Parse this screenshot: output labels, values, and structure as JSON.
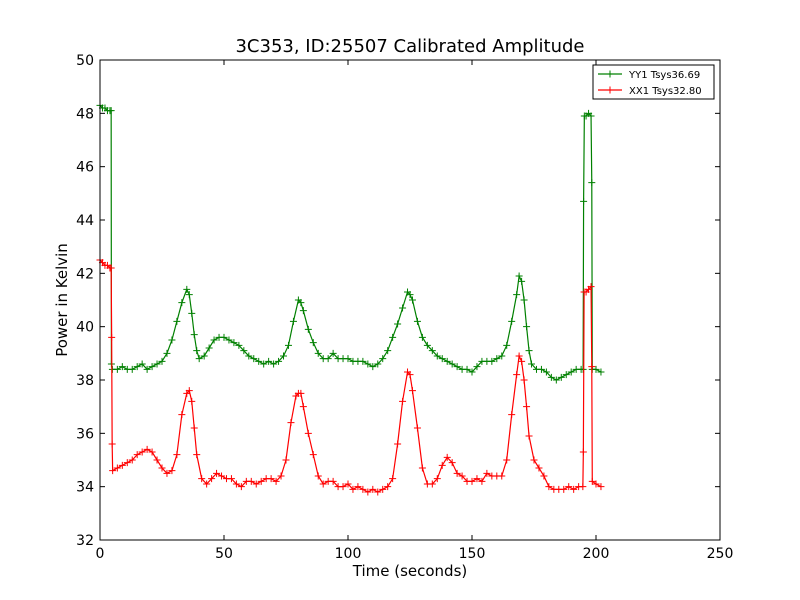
{
  "chart_data": {
    "type": "line",
    "title": "3C353, ID:25507 Calibrated Amplitude",
    "xlabel": "Time (seconds)",
    "ylabel": "Power in Kelvin",
    "xlim": [
      0,
      250
    ],
    "ylim": [
      32,
      50
    ],
    "x_ticks": [
      "0",
      "50",
      "100",
      "150",
      "200",
      "250"
    ],
    "y_ticks": [
      "32",
      "34",
      "36",
      "38",
      "40",
      "42",
      "44",
      "46",
      "48",
      "50"
    ],
    "grid": false,
    "legend_position": "top-right",
    "marker": "+",
    "series": [
      {
        "name": "YY1 Tsys36.69",
        "color": "#008000",
        "points": [
          [
            0,
            48.3
          ],
          [
            1,
            48.2
          ],
          [
            2,
            48.2
          ],
          [
            3,
            48.1
          ],
          [
            4,
            48.1
          ],
          [
            4.5,
            48.1
          ],
          [
            4.6,
            38.6
          ],
          [
            5,
            38.4
          ],
          [
            7,
            38.4
          ],
          [
            9,
            38.5
          ],
          [
            11,
            38.4
          ],
          [
            13,
            38.4
          ],
          [
            15,
            38.5
          ],
          [
            17,
            38.6
          ],
          [
            19,
            38.4
          ],
          [
            21,
            38.5
          ],
          [
            23,
            38.6
          ],
          [
            25,
            38.7
          ],
          [
            27,
            39.0
          ],
          [
            29,
            39.5
          ],
          [
            31,
            40.2
          ],
          [
            33,
            40.9
          ],
          [
            35,
            41.4
          ],
          [
            36,
            41.2
          ],
          [
            37,
            40.5
          ],
          [
            38,
            39.7
          ],
          [
            39,
            39.1
          ],
          [
            40,
            38.8
          ],
          [
            42,
            38.9
          ],
          [
            44,
            39.2
          ],
          [
            46,
            39.5
          ],
          [
            48,
            39.6
          ],
          [
            50,
            39.6
          ],
          [
            52,
            39.5
          ],
          [
            54,
            39.4
          ],
          [
            56,
            39.3
          ],
          [
            58,
            39.1
          ],
          [
            60,
            38.9
          ],
          [
            62,
            38.8
          ],
          [
            64,
            38.7
          ],
          [
            66,
            38.6
          ],
          [
            68,
            38.7
          ],
          [
            70,
            38.6
          ],
          [
            72,
            38.7
          ],
          [
            74,
            38.9
          ],
          [
            76,
            39.3
          ],
          [
            78,
            40.2
          ],
          [
            80,
            41.0
          ],
          [
            81,
            40.9
          ],
          [
            82,
            40.6
          ],
          [
            84,
            39.9
          ],
          [
            86,
            39.4
          ],
          [
            88,
            39.0
          ],
          [
            90,
            38.8
          ],
          [
            92,
            38.8
          ],
          [
            94,
            39.0
          ],
          [
            96,
            38.8
          ],
          [
            98,
            38.8
          ],
          [
            100,
            38.8
          ],
          [
            102,
            38.7
          ],
          [
            104,
            38.7
          ],
          [
            106,
            38.7
          ],
          [
            108,
            38.6
          ],
          [
            110,
            38.5
          ],
          [
            112,
            38.6
          ],
          [
            114,
            38.8
          ],
          [
            116,
            39.1
          ],
          [
            118,
            39.6
          ],
          [
            120,
            40.1
          ],
          [
            122,
            40.7
          ],
          [
            124,
            41.3
          ],
          [
            125,
            41.2
          ],
          [
            126,
            41.0
          ],
          [
            128,
            40.2
          ],
          [
            130,
            39.6
          ],
          [
            132,
            39.3
          ],
          [
            134,
            39.1
          ],
          [
            136,
            38.9
          ],
          [
            138,
            38.8
          ],
          [
            140,
            38.7
          ],
          [
            142,
            38.6
          ],
          [
            144,
            38.5
          ],
          [
            146,
            38.4
          ],
          [
            148,
            38.4
          ],
          [
            150,
            38.3
          ],
          [
            152,
            38.5
          ],
          [
            154,
            38.7
          ],
          [
            156,
            38.7
          ],
          [
            158,
            38.7
          ],
          [
            160,
            38.8
          ],
          [
            162,
            38.9
          ],
          [
            164,
            39.3
          ],
          [
            166,
            40.2
          ],
          [
            168,
            41.2
          ],
          [
            169,
            41.9
          ],
          [
            170,
            41.7
          ],
          [
            171,
            41.0
          ],
          [
            172,
            40.0
          ],
          [
            173,
            39.1
          ],
          [
            174,
            38.6
          ],
          [
            176,
            38.4
          ],
          [
            178,
            38.4
          ],
          [
            180,
            38.3
          ],
          [
            182,
            38.1
          ],
          [
            184,
            38.0
          ],
          [
            186,
            38.1
          ],
          [
            188,
            38.2
          ],
          [
            190,
            38.3
          ],
          [
            192,
            38.4
          ],
          [
            194,
            38.4
          ],
          [
            194.8,
            38.4
          ],
          [
            195,
            44.7
          ],
          [
            195.3,
            47.9
          ],
          [
            196,
            47.9
          ],
          [
            197,
            48.0
          ],
          [
            198,
            47.9
          ],
          [
            198.3,
            45.4
          ],
          [
            198.5,
            38.4
          ],
          [
            200,
            38.4
          ],
          [
            202,
            38.3
          ]
        ]
      },
      {
        "name": "XX1 Tsys32.80",
        "color": "#ff0000",
        "points": [
          [
            0,
            42.5
          ],
          [
            1,
            42.4
          ],
          [
            2,
            42.3
          ],
          [
            3,
            42.3
          ],
          [
            4,
            42.2
          ],
          [
            4.5,
            42.2
          ],
          [
            4.7,
            39.6
          ],
          [
            4.9,
            35.6
          ],
          [
            5.1,
            34.6
          ],
          [
            7,
            34.7
          ],
          [
            9,
            34.8
          ],
          [
            11,
            34.9
          ],
          [
            13,
            35.0
          ],
          [
            15,
            35.2
          ],
          [
            17,
            35.3
          ],
          [
            19,
            35.4
          ],
          [
            21,
            35.3
          ],
          [
            23,
            35.0
          ],
          [
            25,
            34.7
          ],
          [
            27,
            34.5
          ],
          [
            29,
            34.6
          ],
          [
            31,
            35.2
          ],
          [
            33,
            36.7
          ],
          [
            35,
            37.5
          ],
          [
            36,
            37.6
          ],
          [
            37,
            37.2
          ],
          [
            38,
            36.2
          ],
          [
            39,
            35.2
          ],
          [
            41,
            34.3
          ],
          [
            43,
            34.1
          ],
          [
            45,
            34.3
          ],
          [
            47,
            34.5
          ],
          [
            49,
            34.4
          ],
          [
            51,
            34.3
          ],
          [
            53,
            34.3
          ],
          [
            55,
            34.1
          ],
          [
            57,
            34.0
          ],
          [
            59,
            34.2
          ],
          [
            61,
            34.2
          ],
          [
            63,
            34.1
          ],
          [
            65,
            34.2
          ],
          [
            67,
            34.3
          ],
          [
            69,
            34.3
          ],
          [
            71,
            34.2
          ],
          [
            73,
            34.4
          ],
          [
            75,
            35.0
          ],
          [
            77,
            36.4
          ],
          [
            79,
            37.4
          ],
          [
            80,
            37.5
          ],
          [
            81,
            37.5
          ],
          [
            82,
            37.0
          ],
          [
            84,
            36.0
          ],
          [
            86,
            35.2
          ],
          [
            88,
            34.4
          ],
          [
            90,
            34.1
          ],
          [
            92,
            34.2
          ],
          [
            94,
            34.2
          ],
          [
            96,
            34.0
          ],
          [
            98,
            34.0
          ],
          [
            100,
            34.1
          ],
          [
            102,
            33.9
          ],
          [
            104,
            34.0
          ],
          [
            106,
            33.9
          ],
          [
            108,
            33.8
          ],
          [
            110,
            33.9
          ],
          [
            112,
            33.8
          ],
          [
            114,
            33.9
          ],
          [
            116,
            34.0
          ],
          [
            118,
            34.3
          ],
          [
            120,
            35.6
          ],
          [
            122,
            37.2
          ],
          [
            124,
            38.3
          ],
          [
            125,
            38.2
          ],
          [
            126,
            37.6
          ],
          [
            128,
            36.2
          ],
          [
            130,
            34.7
          ],
          [
            132,
            34.1
          ],
          [
            134,
            34.1
          ],
          [
            136,
            34.3
          ],
          [
            138,
            34.8
          ],
          [
            140,
            35.1
          ],
          [
            142,
            34.9
          ],
          [
            144,
            34.5
          ],
          [
            146,
            34.4
          ],
          [
            148,
            34.2
          ],
          [
            150,
            34.2
          ],
          [
            152,
            34.3
          ],
          [
            154,
            34.2
          ],
          [
            156,
            34.5
          ],
          [
            158,
            34.4
          ],
          [
            160,
            34.4
          ],
          [
            162,
            34.4
          ],
          [
            164,
            35.0
          ],
          [
            166,
            36.7
          ],
          [
            168,
            38.2
          ],
          [
            169,
            38.9
          ],
          [
            170,
            38.7
          ],
          [
            171,
            38.0
          ],
          [
            172,
            37.0
          ],
          [
            173,
            35.9
          ],
          [
            175,
            35.0
          ],
          [
            177,
            34.7
          ],
          [
            179,
            34.4
          ],
          [
            181,
            34.0
          ],
          [
            183,
            33.9
          ],
          [
            185,
            33.9
          ],
          [
            187,
            33.9
          ],
          [
            189,
            34.0
          ],
          [
            191,
            33.9
          ],
          [
            193,
            34.0
          ],
          [
            194.7,
            34.0
          ],
          [
            194.9,
            35.3
          ],
          [
            195.2,
            41.3
          ],
          [
            196,
            41.3
          ],
          [
            197,
            41.4
          ],
          [
            198,
            41.5
          ],
          [
            198.3,
            38.5
          ],
          [
            198.5,
            34.2
          ],
          [
            200,
            34.1
          ],
          [
            202,
            34.0
          ]
        ]
      }
    ]
  }
}
